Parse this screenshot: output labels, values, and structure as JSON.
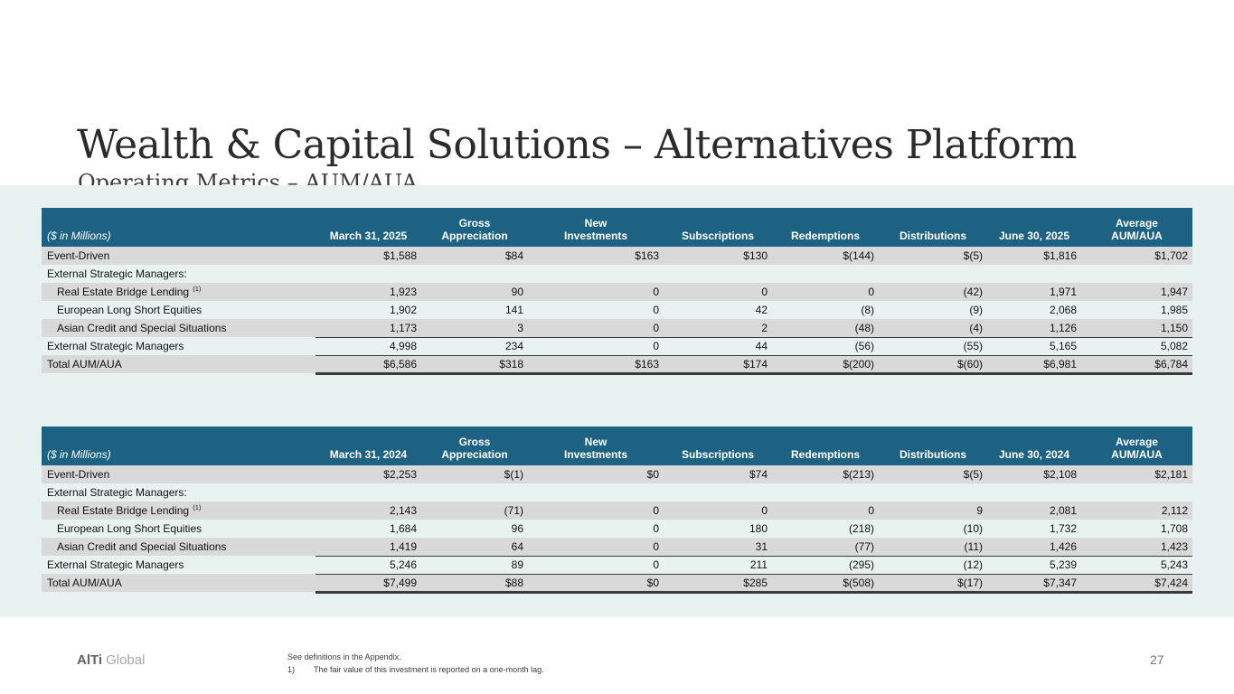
{
  "slide": {
    "title": "Wealth & Capital Solutions – Alternatives Platform",
    "subtitle": "Operating Metrics – AUM/AUA",
    "page_number": "27",
    "logo": {
      "bold": "AlTi",
      "light": "Global"
    },
    "footnote_appendix": "See definitions in the Appendix.",
    "footnote_marker": "1)",
    "footnote_1": "The fair value of this investment is reported on a one-month lag."
  },
  "colors": {
    "header_bg": "#1d6282",
    "stripe_bg": "#d9d9d9",
    "band_bg": "#e8f2f0",
    "rule_color": "#3a3a3a"
  },
  "tables": [
    {
      "unit_label": "($ in Millions)",
      "columns": [
        "March 31, 2025",
        "Gross\nAppreciation",
        "New\nInvestments",
        "Subscriptions",
        "Redemptions",
        "Distributions",
        "June 30, 2025",
        "Average\nAUM/AUA"
      ],
      "rows": [
        {
          "label": "Event-Driven",
          "stripe": true,
          "values": [
            "$1,588",
            "$84",
            "$163",
            "$130",
            "$(144)",
            "$(5)",
            "$1,816",
            "$1,702"
          ]
        },
        {
          "label": "External Strategic Managers:",
          "section": true,
          "values": null
        },
        {
          "label": "Real Estate Bridge Lending",
          "sup": "(1)",
          "indent": true,
          "stripe": true,
          "values": [
            "1,923",
            "90",
            "0",
            "0",
            "0",
            "(42)",
            "1,971",
            "1,947"
          ]
        },
        {
          "label": "European Long Short Equities",
          "indent": true,
          "values": [
            "1,902",
            "141",
            "0",
            "42",
            "(8)",
            "(9)",
            "2,068",
            "1,985"
          ]
        },
        {
          "label": "Asian Credit and Special Situations",
          "indent": true,
          "stripe": true,
          "rule": true,
          "values": [
            "1,173",
            "3",
            "0",
            "2",
            "(48)",
            "(4)",
            "1,126",
            "1,150"
          ]
        },
        {
          "label": "External Strategic Managers",
          "rule": true,
          "values": [
            "4,998",
            "234",
            "0",
            "44",
            "(56)",
            "(55)",
            "5,165",
            "5,082"
          ]
        },
        {
          "label": "Total AUM/AUA",
          "stripe": true,
          "total": true,
          "values": [
            "$6,586",
            "$318",
            "$163",
            "$174",
            "$(200)",
            "$(60)",
            "$6,981",
            "$6,784"
          ]
        }
      ]
    },
    {
      "unit_label": "($ in Millions)",
      "columns": [
        "March 31, 2024",
        "Gross\nAppreciation",
        "New\nInvestments",
        "Subscriptions",
        "Redemptions",
        "Distributions",
        "June 30, 2024",
        "Average\nAUM/AUA"
      ],
      "rows": [
        {
          "label": "Event-Driven",
          "stripe": true,
          "values": [
            "$2,253",
            "$(1)",
            "$0",
            "$74",
            "$(213)",
            "$(5)",
            "$2,108",
            "$2,181"
          ]
        },
        {
          "label": "External Strategic Managers:",
          "section": true,
          "values": null
        },
        {
          "label": "Real Estate Bridge Lending",
          "sup": "(1)",
          "indent": true,
          "stripe": true,
          "values": [
            "2,143",
            "(71)",
            "0",
            "0",
            "0",
            "9",
            "2,081",
            "2,112"
          ]
        },
        {
          "label": "European Long Short Equities",
          "indent": true,
          "values": [
            "1,684",
            "96",
            "0",
            "180",
            "(218)",
            "(10)",
            "1,732",
            "1,708"
          ]
        },
        {
          "label": "Asian Credit and Special Situations",
          "indent": true,
          "stripe": true,
          "rule": true,
          "values": [
            "1,419",
            "64",
            "0",
            "31",
            "(77)",
            "(11)",
            "1,426",
            "1,423"
          ]
        },
        {
          "label": "External Strategic Managers",
          "rule": true,
          "values": [
            "5,246",
            "89",
            "0",
            "211",
            "(295)",
            "(12)",
            "5,239",
            "5,243"
          ]
        },
        {
          "label": "Total AUM/AUA",
          "stripe": true,
          "total": true,
          "values": [
            "$7,499",
            "$88",
            "$0",
            "$285",
            "$(508)",
            "$(17)",
            "$7,347",
            "$7,424"
          ]
        }
      ]
    }
  ]
}
